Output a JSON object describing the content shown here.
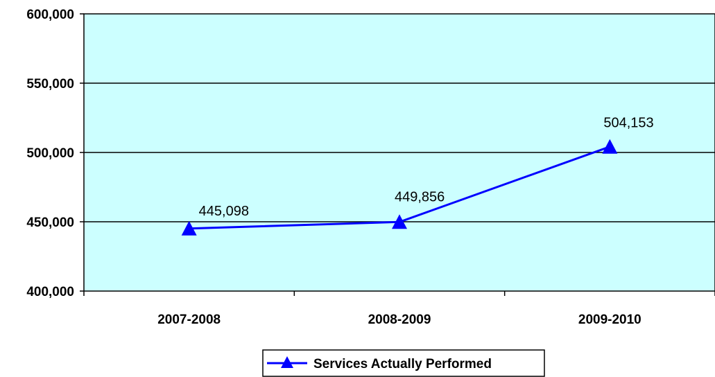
{
  "chart_data": {
    "type": "line",
    "categories": [
      "2007-2008",
      "2008-2009",
      "2009-2010"
    ],
    "series": [
      {
        "name": "Services Actually Performed",
        "values": [
          445098,
          449856,
          504153
        ],
        "data_labels": [
          "445,098",
          "449,856",
          "504,153"
        ],
        "color": "#0000ff",
        "marker": "triangle"
      }
    ],
    "ylim": [
      400000,
      600000
    ],
    "y_ticks": [
      400000,
      450000,
      500000,
      550000,
      600000
    ],
    "y_tick_labels": [
      "400,000",
      "450,000",
      "500,000",
      "550,000",
      "600,000"
    ],
    "grid": true,
    "plot_background": "#ccffff",
    "legend_position": "bottom-center"
  }
}
